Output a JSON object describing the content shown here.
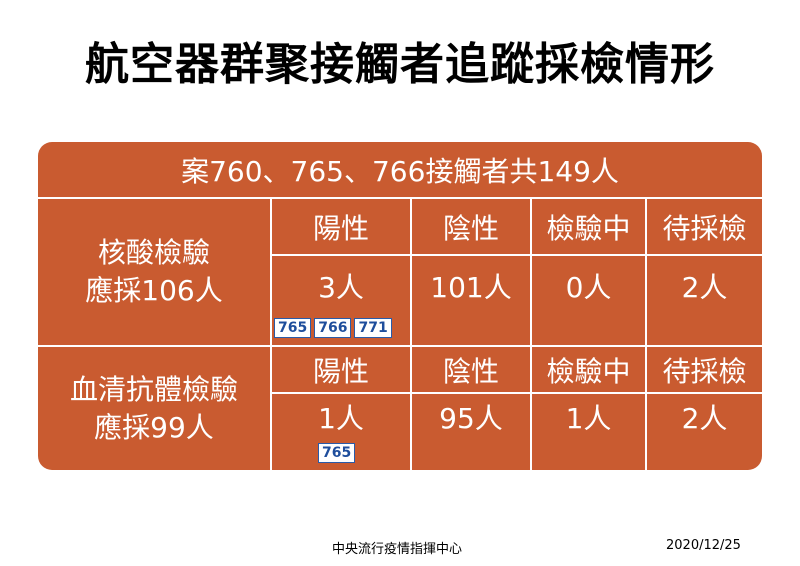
{
  "title": "航空器群聚接觸者追蹤採檢情形",
  "header": "案760、765、766接觸者共149人",
  "sections": [
    {
      "label_line1": "核酸檢驗",
      "label_line2": "應採106人",
      "columns": [
        "陽性",
        "陰性",
        "檢驗中",
        "待採檢"
      ],
      "values": [
        "3人",
        "101人",
        "0人",
        "2人"
      ],
      "positive_cases": [
        "765",
        "766",
        "771"
      ]
    },
    {
      "label_line1": "血清抗體檢驗",
      "label_line2": "應採99人",
      "columns": [
        "陽性",
        "陰性",
        "檢驗中",
        "待採檢"
      ],
      "values": [
        "1人",
        "95人",
        "1人",
        "2人"
      ],
      "positive_cases": [
        "765"
      ]
    }
  ],
  "footer": {
    "organization": "中央流行疫情指揮中心",
    "date": "2020/12/25"
  },
  "colors": {
    "card_background": "#c95b30",
    "tag_text": "#1f4e9c"
  }
}
